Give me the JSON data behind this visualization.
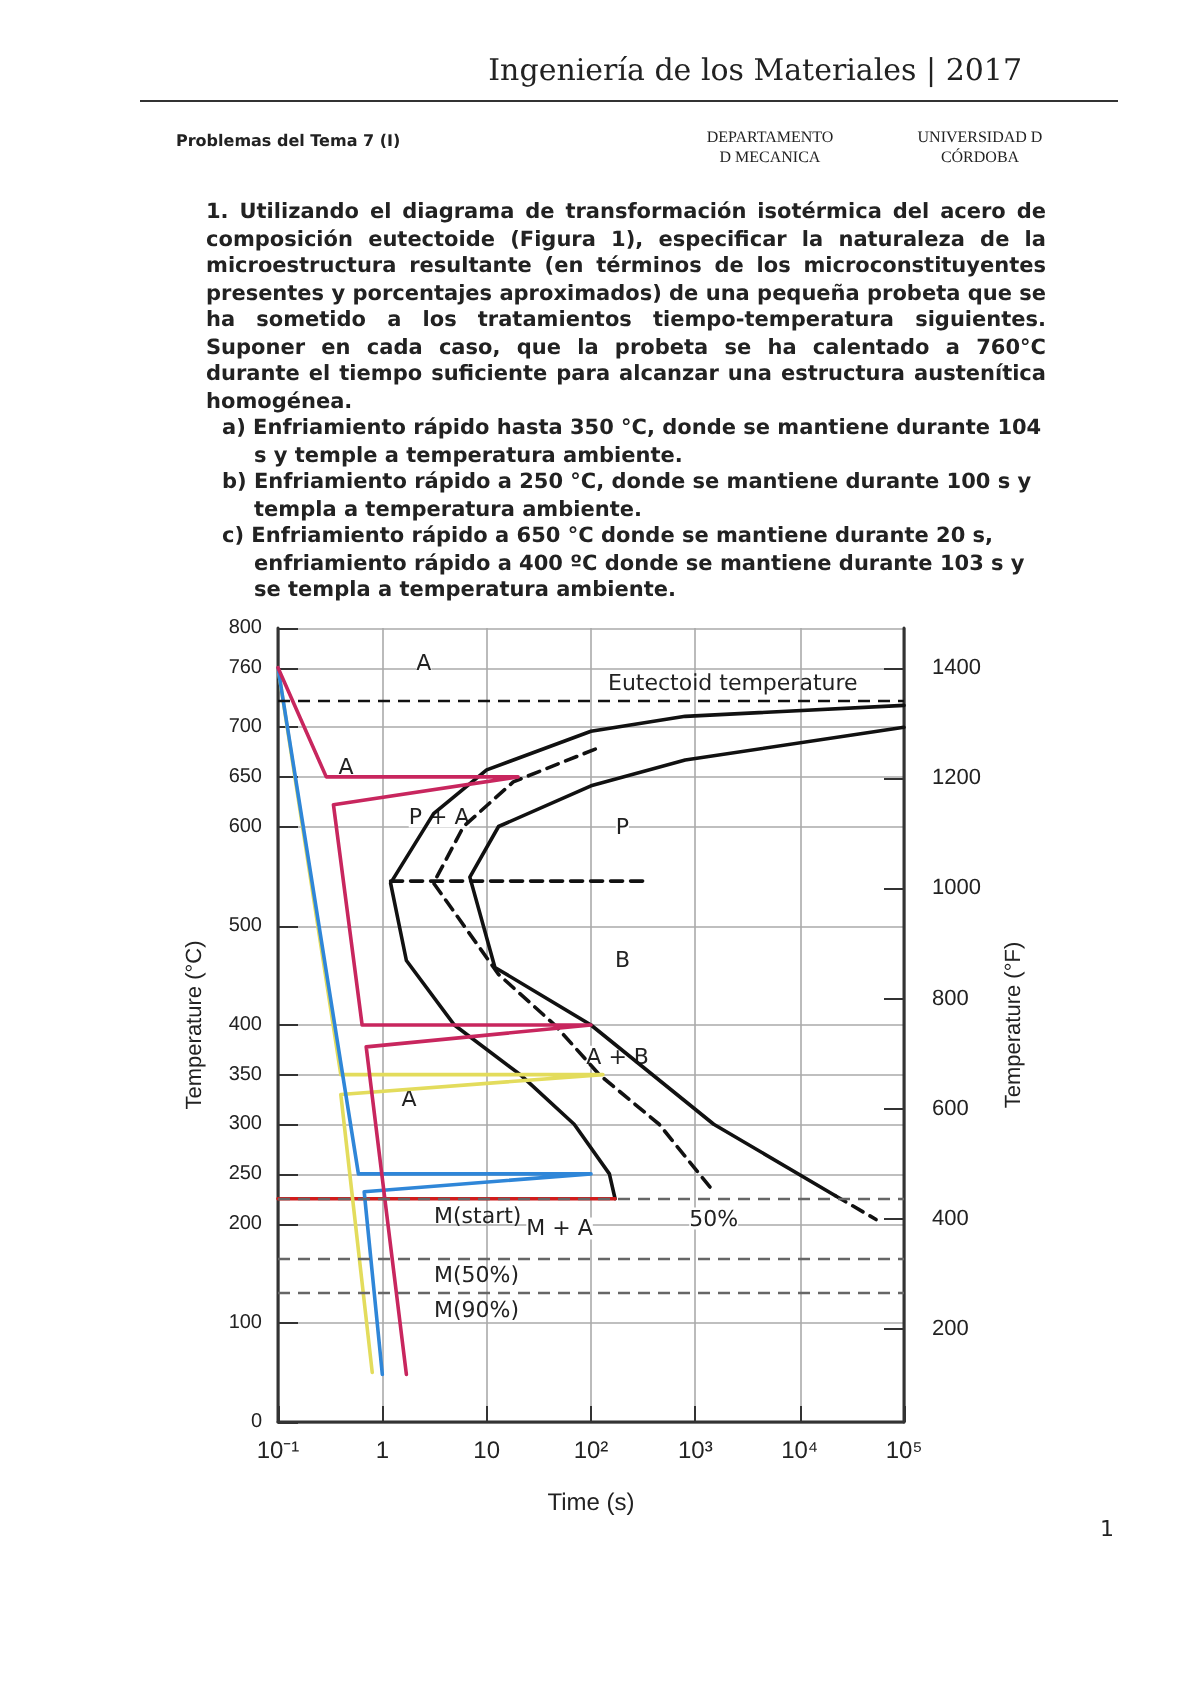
{
  "chart_data": {
    "type": "line",
    "title": "Ingeniería de los Materiales | 2017",
    "subtitle": "Problemas del Tema 7 (I)",
    "xlabel": "Time (s)",
    "ylabel": "Temperature (°C)",
    "y2label": "Temperature (°F)",
    "log": "x",
    "grid": true,
    "marker": "none",
    "xlim": [
      0.1,
      100000
    ],
    "xticks": [
      {
        "value": 0.1,
        "label": "10⁻¹"
      },
      1,
      10,
      {
        "value": 100,
        "label": "10²"
      },
      {
        "value": 1000,
        "label": "10³"
      },
      {
        "value": 10000,
        "label": "10⁴"
      },
      {
        "value": 100000,
        "label": "10⁵"
      }
    ],
    "ylim": [
      0,
      800
    ],
    "yticks": [
      0,
      100,
      200,
      250,
      300,
      350,
      400,
      500,
      600,
      650,
      700,
      760,
      800
    ],
    "y2lim": [
      32,
      1472
    ],
    "y2ticks": [
      200,
      400,
      600,
      800,
      1000,
      1200,
      1400
    ],
    "series": [
      {
        "color": "#111111",
        "line_style": "solid",
        "x": [
          100000,
          800,
          100,
          10,
          3.1,
          1.2,
          1.7,
          4.9,
          21,
          69,
          150,
          170
        ],
        "values": [
          722,
          711,
          696,
          657,
          613,
          543,
          465,
          400,
          350,
          300,
          250,
          225
        ]
      },
      {
        "color": "#111111",
        "line_style": "dashed",
        "x": [
          110,
          18,
          6,
          3.1,
          13,
          45,
          120,
          450,
          1500
        ],
        "values": [
          678,
          645,
          600,
          543,
          451,
          400,
          350,
          300,
          232
        ]
      },
      {
        "color": "#111111",
        "line_style": "solid",
        "x": [
          100000,
          800,
          100,
          13,
          6.9,
          12,
          100,
          1500,
          22000
        ],
        "values": [
          700,
          667,
          641,
          600,
          549,
          458,
          400,
          300,
          228
        ]
      },
      {
        "color": "#111111",
        "line_style": "dashed",
        "x": [
          22000,
          54000
        ],
        "values": [
          228,
          204
        ]
      },
      {
        "color": "#111111",
        "line_style": "dashed",
        "x": [
          1.2,
          360
        ],
        "values": [
          545,
          545
        ]
      },
      {
        "color": "#d01c1c",
        "line_style": "solid",
        "x": [
          0.1,
          170
        ],
        "values": [
          225,
          225
        ]
      },
      {
        "color": "#e3dc5c",
        "line_style": "solid",
        "x": [
          0.1,
          0.4,
          130,
          0.4,
          0.8
        ],
        "values": [
          760,
          350,
          350,
          330,
          50
        ]
      },
      {
        "color": "#2f86d8",
        "line_style": "solid",
        "x": [
          0.1,
          0.59,
          100,
          0.67,
          1.0
        ],
        "values": [
          760,
          250,
          250,
          232,
          48
        ]
      },
      {
        "color": "#c8265e",
        "line_style": "solid",
        "x": [
          0.1,
          0.29,
          20,
          0.34,
          0.64,
          100,
          0.7,
          1.7
        ],
        "values": [
          760,
          650,
          650,
          622,
          400,
          400,
          378,
          48
        ]
      }
    ],
    "ref_lines": [
      {
        "axis": "y",
        "value": 727,
        "label": "Eutectoid temperature",
        "line_style": "dashed",
        "color": "#111111"
      },
      {
        "axis": "y",
        "value": 225,
        "label": "M(start)",
        "line_style": "dashed",
        "color": "#666666"
      },
      {
        "axis": "y",
        "value": 165,
        "label": "M(50%)",
        "line_style": "dashed",
        "color": "#666666"
      },
      {
        "axis": "y",
        "value": 130,
        "label": "M(90%)",
        "line_style": "dashed",
        "color": "#666666"
      }
    ],
    "annotations": [
      "DEPARTAMENTO D MECANICA",
      "UNIVERSIDAD D CÓRDOBA",
      "1. Utilizando el diagrama de transformación isotérmica del acero de composición eutectoide (Figura 1), especificar la naturaleza de la microestructura resultante (en términos de los microconstituyentes presentes y porcentajes aproximados) de una pequeña probeta que se ha sometido a los tratamientos tiempo-temperatura siguientes. Suponer en cada caso, que la probeta se ha calentado a 760°C durante el tiempo suficiente para alcanzar una estructura austenítica homogénea.",
      "a) Enfriamiento rápido hasta 350 °C, donde se mantiene durante 104 s y temple a temperatura ambiente.",
      "b) Enfriamiento rápido a 250 °C, donde se mantiene durante 100 s y templa a temperatura ambiente.",
      "c) Enfriamiento rápido a 650 °C donde se mantiene durante 20 s, enfriamiento rápido a 400 ºC donde se mantiene durante 103 s y se templa a temperatura ambiente.",
      "1",
      {
        "text": "A",
        "x": 2.5,
        "y": 765
      },
      {
        "text": "A",
        "x": 0.45,
        "y": 660
      },
      {
        "text": "P",
        "x": 200,
        "y": 600
      },
      {
        "text": "P + A",
        "x": 3.5,
        "y": 610
      },
      {
        "text": "B",
        "x": 200,
        "y": 465
      },
      {
        "text": "A + B",
        "x": 180,
        "y": 368
      },
      {
        "text": "A",
        "x": 1.8,
        "y": 325
      },
      {
        "text": "M + A",
        "x": 50,
        "y": 195
      },
      {
        "text": "50%",
        "x": 1500,
        "y": 205
      }
    ]
  }
}
